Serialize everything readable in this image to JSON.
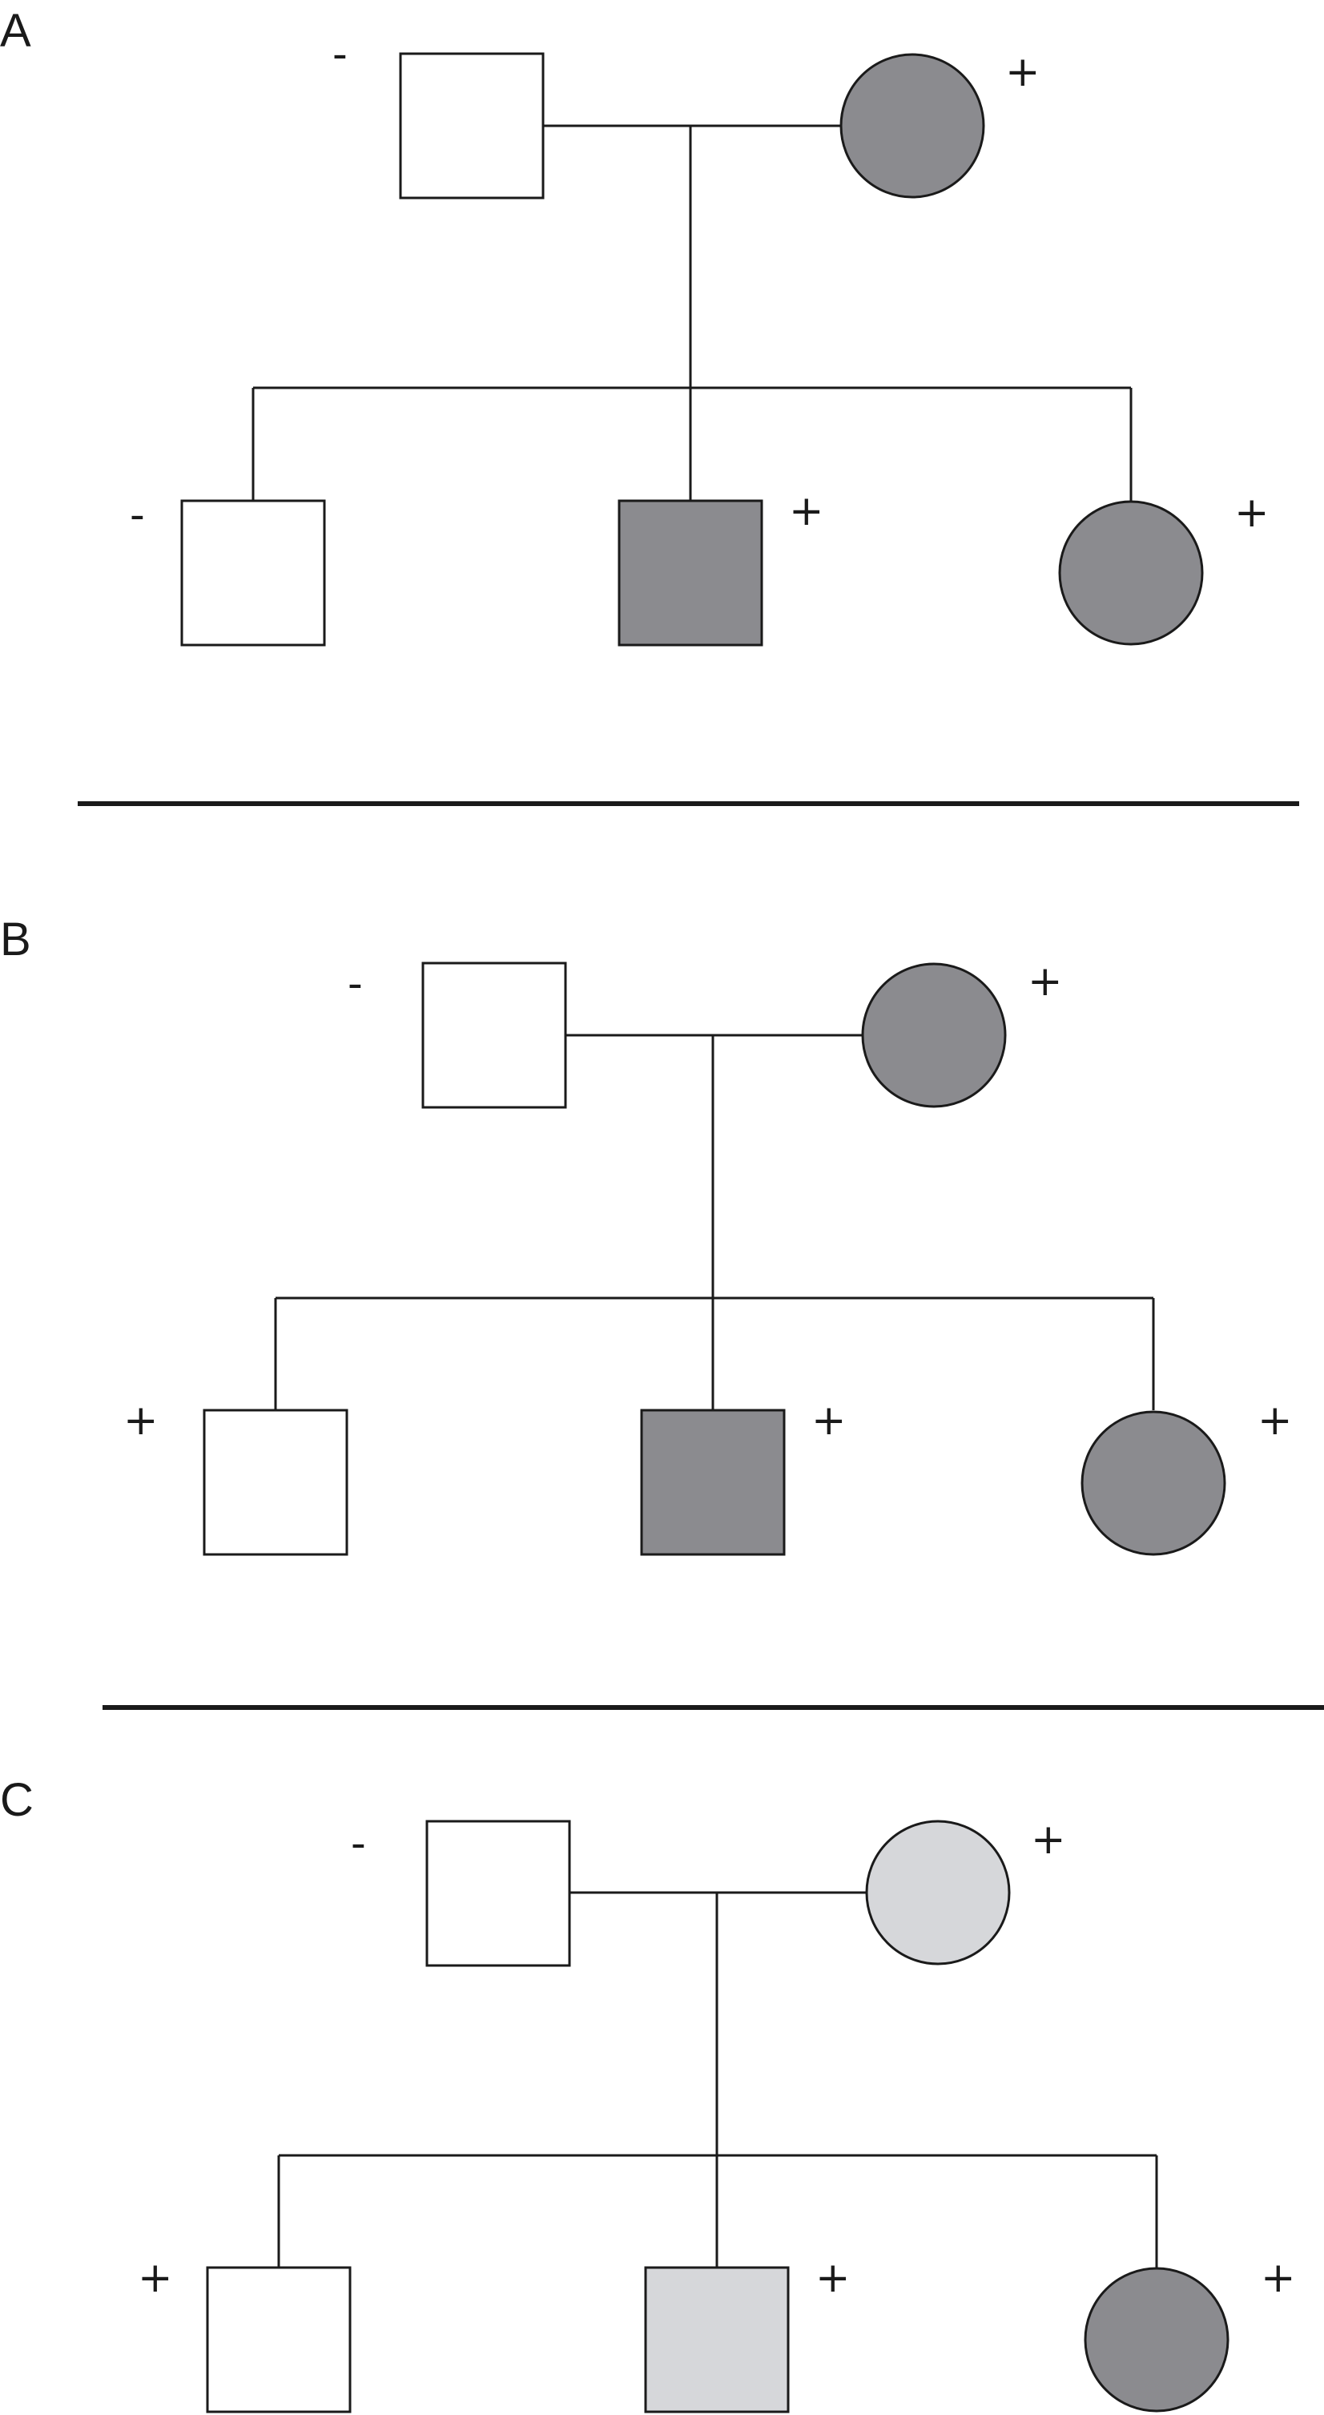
{
  "colors": {
    "unaffected": "#ffffff",
    "affected": "#8b8b8f",
    "partial": "#d6d7da",
    "ink": "#1a1a1a"
  },
  "panels": [
    {
      "label": "A",
      "father": {
        "sex": "male",
        "status": "unaffected",
        "sign": "-"
      },
      "mother": {
        "sex": "female",
        "status": "affected",
        "sign": "+"
      },
      "children": [
        {
          "sex": "male",
          "status": "unaffected",
          "sign": "-"
        },
        {
          "sex": "male",
          "status": "affected",
          "sign": "+"
        },
        {
          "sex": "female",
          "status": "affected",
          "sign": "+"
        }
      ]
    },
    {
      "label": "B",
      "father": {
        "sex": "male",
        "status": "unaffected",
        "sign": "-"
      },
      "mother": {
        "sex": "female",
        "status": "affected",
        "sign": "+"
      },
      "children": [
        {
          "sex": "male",
          "status": "unaffected",
          "sign": "+"
        },
        {
          "sex": "male",
          "status": "affected",
          "sign": "+"
        },
        {
          "sex": "female",
          "status": "affected",
          "sign": "+"
        }
      ]
    },
    {
      "label": "C",
      "father": {
        "sex": "male",
        "status": "unaffected",
        "sign": "-"
      },
      "mother": {
        "sex": "female",
        "status": "partial",
        "sign": "+"
      },
      "children": [
        {
          "sex": "male",
          "status": "unaffected",
          "sign": "+"
        },
        {
          "sex": "male",
          "status": "partial",
          "sign": "+"
        },
        {
          "sex": "female",
          "status": "affected",
          "sign": "+"
        }
      ]
    }
  ]
}
